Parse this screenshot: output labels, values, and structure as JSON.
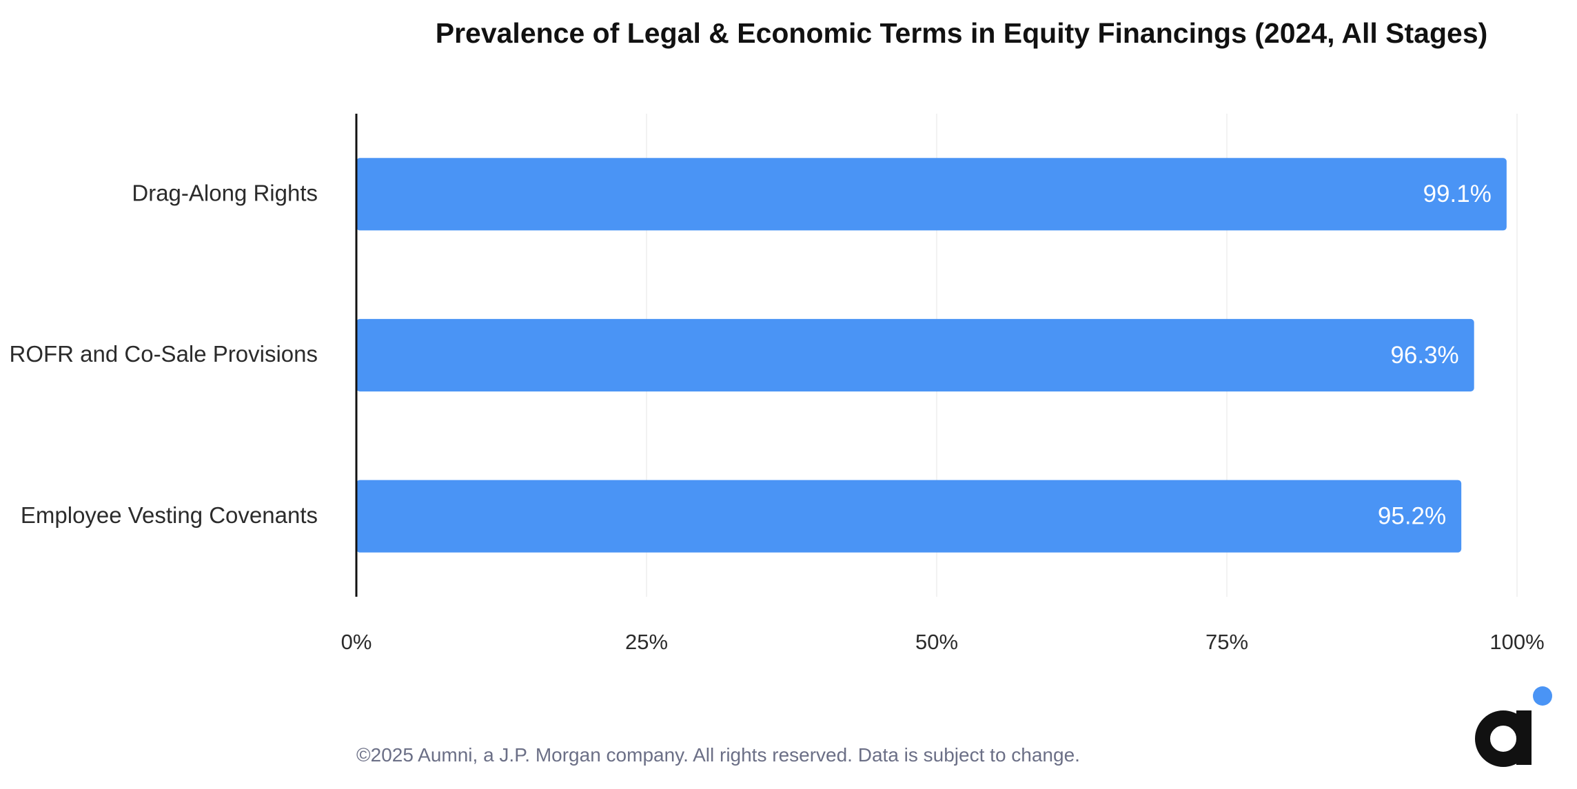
{
  "chart_data": {
    "type": "bar",
    "orientation": "horizontal",
    "title": "Prevalence of Legal & Economic Terms in Equity Financings (2024, All Stages)",
    "categories": [
      "Drag-Along Rights",
      "ROFR and Co-Sale Provisions",
      "Employee Vesting Covenants"
    ],
    "values": [
      99.1,
      96.3,
      95.2
    ],
    "value_labels": [
      "99.1%",
      "96.3%",
      "95.2%"
    ],
    "xlim": [
      0,
      100
    ],
    "x_ticks": [
      0,
      25,
      50,
      75,
      100
    ],
    "x_tick_labels": [
      "0%",
      "25%",
      "50%",
      "75%",
      "100%"
    ],
    "grid": true,
    "bar_color": "#4a94f5",
    "gridline_color": "#eeeeee",
    "axis_color": "#111111"
  },
  "footer": {
    "copyright": "©2025 Aumni, a J.P. Morgan company. All rights reserved. Data is subject to change."
  },
  "logo": {
    "letter": "a",
    "icon": "aumni-logo-icon",
    "dark_color": "#111111",
    "dot_color": "#4a94f5"
  }
}
